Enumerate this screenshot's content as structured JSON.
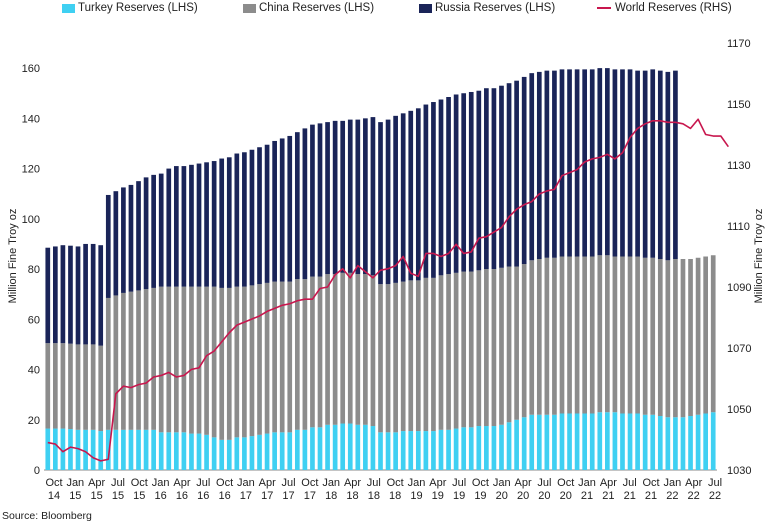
{
  "chart_data": {
    "type": "bar",
    "stacked": true,
    "title": "",
    "ylabel": "Million Fine Troy oz",
    "y2label": "Million Fine Troy oz",
    "ylim": [
      0,
      170
    ],
    "y2lim": [
      1030,
      1170
    ],
    "yticks": [
      0,
      20,
      40,
      60,
      80,
      100,
      120,
      140,
      160
    ],
    "y2ticks": [
      1030,
      1050,
      1070,
      1090,
      1110,
      1130,
      1150,
      1170
    ],
    "source": "Source: Bloomberg",
    "x_tick_labels": [
      [
        "Oct",
        "14"
      ],
      [
        "Jan",
        "15"
      ],
      [
        "Apr",
        "15"
      ],
      [
        "Jul",
        "15"
      ],
      [
        "Oct",
        "15"
      ],
      [
        "Jan",
        "16"
      ],
      [
        "Apr",
        "16"
      ],
      [
        "Jul",
        "16"
      ],
      [
        "Oct",
        "16"
      ],
      [
        "Jan",
        "17"
      ],
      [
        "Apr",
        "17"
      ],
      [
        "Jul",
        "17"
      ],
      [
        "Oct",
        "17"
      ],
      [
        "Jan",
        "18"
      ],
      [
        "Apr",
        "18"
      ],
      [
        "Jul",
        "18"
      ],
      [
        "Oct",
        "18"
      ],
      [
        "Jan",
        "19"
      ],
      [
        "Apr",
        "19"
      ],
      [
        "Jul",
        "19"
      ],
      [
        "Oct",
        "19"
      ],
      [
        "Jan",
        "20"
      ],
      [
        "Apr",
        "20"
      ],
      [
        "Jul",
        "20"
      ],
      [
        "Oct",
        "20"
      ],
      [
        "Jan",
        "21"
      ],
      [
        "Apr",
        "21"
      ],
      [
        "Jul",
        "21"
      ],
      [
        "Oct",
        "21"
      ],
      [
        "Jan",
        "22"
      ],
      [
        "Apr",
        "22"
      ],
      [
        "Jul",
        "22"
      ]
    ],
    "colors": {
      "turkey": "#3fd0f2",
      "china": "#8c8c8c",
      "russia": "#1a2458",
      "world": "#c8174e"
    },
    "series": [
      {
        "name": "Turkey Reserves (LHS)",
        "axis": "left",
        "values": [
          16.5,
          16.5,
          16.5,
          16.3,
          16,
          16,
          16,
          15.5,
          16,
          16,
          16,
          16,
          16,
          16,
          16,
          15,
          15,
          15,
          15,
          14.5,
          14.5,
          14,
          13,
          12,
          12,
          13,
          13,
          13.5,
          14,
          14.5,
          15,
          15,
          15,
          16,
          16,
          17,
          17,
          18,
          18,
          18.5,
          18.5,
          18,
          18,
          17.5,
          15,
          15,
          15,
          15.5,
          15.5,
          15.5,
          15.5,
          15.5,
          16,
          16,
          16.5,
          17,
          17,
          17.5,
          17.5,
          17.5,
          18,
          19,
          20,
          21,
          22,
          22,
          22,
          22,
          22.5,
          22.5,
          22.5,
          22.5,
          22.5,
          23,
          23,
          23,
          22.5,
          22.5,
          22.5,
          22,
          22,
          21.5,
          21,
          21,
          21,
          21.5,
          22,
          22.5,
          23
        ]
      },
      {
        "name": "China Reserves (LHS)",
        "axis": "left",
        "values": [
          34,
          34,
          34,
          34,
          34,
          34,
          34,
          34,
          52.5,
          53.5,
          54.5,
          55,
          55.5,
          56,
          56.5,
          58,
          58,
          58,
          58,
          58.5,
          58.5,
          59,
          60,
          60.5,
          60.5,
          60,
          60,
          60,
          60,
          60,
          60,
          60,
          60,
          60,
          60,
          60,
          60,
          60,
          60,
          60,
          60,
          60,
          60,
          60,
          59,
          59,
          59.5,
          59.5,
          60,
          60,
          61,
          61,
          61.5,
          62,
          62,
          62,
          62,
          62,
          62.5,
          62.5,
          62.5,
          62,
          61,
          61,
          61.5,
          62,
          62.5,
          62.5,
          62.5,
          62.5,
          62.5,
          62.5,
          62.5,
          62.5,
          62.5,
          62,
          62.5,
          62.5,
          62.5,
          62.5,
          62.5,
          62.5,
          62.5,
          63,
          63,
          62.5,
          62.5,
          62.5,
          62.5
        ]
      },
      {
        "name": "Russia Reserves (LHS)",
        "axis": "left",
        "values": [
          38,
          38.5,
          39,
          39,
          39,
          40,
          40,
          40,
          41,
          41.5,
          42,
          42.5,
          43.5,
          44.5,
          45,
          45,
          47,
          48,
          48,
          48.5,
          49,
          49.5,
          50,
          51.5,
          52,
          53,
          53.5,
          54,
          54.5,
          55,
          56,
          57,
          58,
          58.5,
          60,
          60.5,
          61,
          60.5,
          61,
          60.5,
          61,
          61.5,
          62,
          63,
          64.5,
          65.5,
          66.5,
          67,
          67.5,
          68.5,
          69,
          70,
          70,
          70.5,
          71,
          71,
          71.5,
          71.5,
          72,
          72,
          72.5,
          73,
          74,
          74.5,
          74.5,
          74.5,
          74.5,
          74.5,
          74.5,
          74.5,
          74.5,
          74.5,
          74.5,
          74.5,
          74.5,
          74.5,
          74.5,
          74.5,
          74,
          74.5,
          75,
          75,
          75,
          75,
          0,
          0,
          0,
          0,
          0
        ]
      },
      {
        "name": "World Reserves (RHS)",
        "axis": "right",
        "type": "line",
        "values": [
          1039,
          1038.5,
          1036,
          1037.5,
          1037,
          1036,
          1034,
          1033,
          1033.5,
          1055,
          1057.5,
          1057,
          1058,
          1058.5,
          1060.5,
          1061,
          1062,
          1060.5,
          1061,
          1063,
          1063.5,
          1067.5,
          1069,
          1072,
          1075,
          1077.5,
          1078.5,
          1079.5,
          1080.5,
          1082,
          1083,
          1084,
          1084.5,
          1085.5,
          1086,
          1086,
          1089.5,
          1090,
          1094,
          1096,
          1093,
          1097,
          1095,
          1093,
          1095.5,
          1096,
          1097,
          1100,
          1094.5,
          1093.5,
          1101,
          1101,
          1100,
          1101,
          1104,
          1101,
          1101.5,
          1106,
          1106.5,
          1108,
          1109.5,
          1113,
          1115.5,
          1117,
          1118,
          1120.5,
          1121.5,
          1122,
          1126.5,
          1127.5,
          1128.5,
          1131,
          1132,
          1132.5,
          1133.5,
          1132,
          1134,
          1139,
          1142,
          1143.5,
          1144.5,
          1144.5,
          1144,
          1144,
          1143.5,
          1142,
          1145,
          1140,
          1139.5,
          1139.5,
          1136
        ]
      }
    ]
  }
}
